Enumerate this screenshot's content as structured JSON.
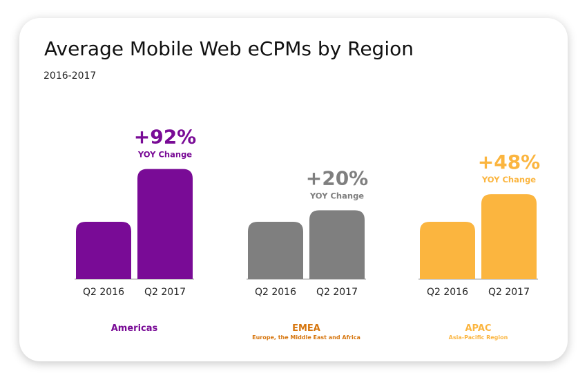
{
  "chart_data": {
    "type": "bar",
    "title": "Average Mobile Web eCPMs by Region",
    "subtitle": "2016-2017",
    "bar_categories": [
      "Q2 2016",
      "Q2 2017"
    ],
    "groups": [
      {
        "name": "Americas",
        "description": "",
        "color": "#790b96",
        "values": [
          1.0,
          1.92
        ],
        "change_label": "+92%",
        "change_caption": "YOY Change"
      },
      {
        "name": "EMEA",
        "description": "Europe, the Middle East and Africa",
        "color": "#7f7f7f",
        "label_color": "#d6750d",
        "values": [
          1.0,
          1.2
        ],
        "change_label": "+20%",
        "change_caption": "YOY Change"
      },
      {
        "name": "APAC",
        "description": "Asia-Pacific Region",
        "color": "#fbb53f",
        "values": [
          1.0,
          1.48
        ],
        "change_label": "+48%",
        "change_caption": "YOY Change"
      }
    ],
    "value_unit": "relative eCPM (Q2 2016 = 1.0)",
    "grid": false,
    "legend": "none"
  }
}
